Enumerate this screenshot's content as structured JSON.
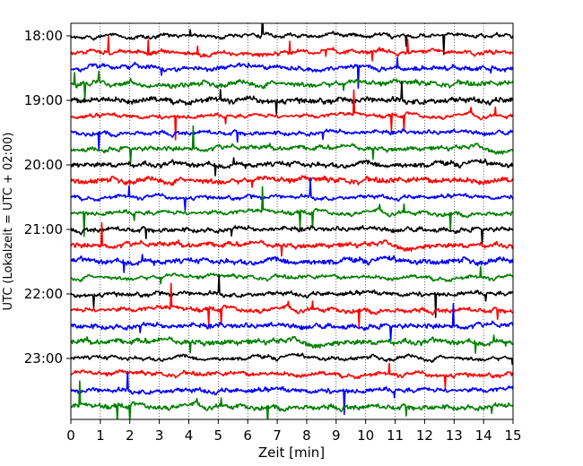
{
  "chart_data": {
    "type": "line",
    "title": "",
    "xlabel": "Zeit  [min]",
    "ylabel": "UTC (Lokalzeit = UTC + 02:00)",
    "xlim": [
      0,
      15
    ],
    "x_ticks": [
      "0",
      "1",
      "2",
      "3",
      "4",
      "5",
      "6",
      "7",
      "8",
      "9",
      "10",
      "11",
      "12",
      "13",
      "14",
      "15"
    ],
    "y_ticks": [
      "18:00",
      "19:00",
      "20:00",
      "21:00",
      "22:00",
      "23:00"
    ],
    "grid": "vertical dotted at each minute",
    "trace_interval_minutes": 15,
    "color_cycle": [
      "black",
      "red",
      "blue",
      "green"
    ],
    "series": [
      {
        "start": "18:00",
        "color": "#000000"
      },
      {
        "start": "18:15",
        "color": "#ff0000"
      },
      {
        "start": "18:30",
        "color": "#0000ff"
      },
      {
        "start": "18:45",
        "color": "#008000"
      },
      {
        "start": "19:00",
        "color": "#000000"
      },
      {
        "start": "19:15",
        "color": "#ff0000"
      },
      {
        "start": "19:30",
        "color": "#0000ff"
      },
      {
        "start": "19:45",
        "color": "#008000"
      },
      {
        "start": "20:00",
        "color": "#000000"
      },
      {
        "start": "20:15",
        "color": "#ff0000"
      },
      {
        "start": "20:30",
        "color": "#0000ff"
      },
      {
        "start": "20:45",
        "color": "#008000"
      },
      {
        "start": "21:00",
        "color": "#000000"
      },
      {
        "start": "21:15",
        "color": "#ff0000"
      },
      {
        "start": "21:30",
        "color": "#0000ff"
      },
      {
        "start": "21:45",
        "color": "#008000"
      },
      {
        "start": "22:00",
        "color": "#000000"
      },
      {
        "start": "22:15",
        "color": "#ff0000"
      },
      {
        "start": "22:30",
        "color": "#0000ff"
      },
      {
        "start": "22:45",
        "color": "#008000"
      },
      {
        "start": "23:00",
        "color": "#000000"
      },
      {
        "start": "23:15",
        "color": "#ff0000"
      },
      {
        "start": "23:30",
        "color": "#0000ff"
      },
      {
        "start": "23:45",
        "color": "#008000"
      }
    ]
  }
}
